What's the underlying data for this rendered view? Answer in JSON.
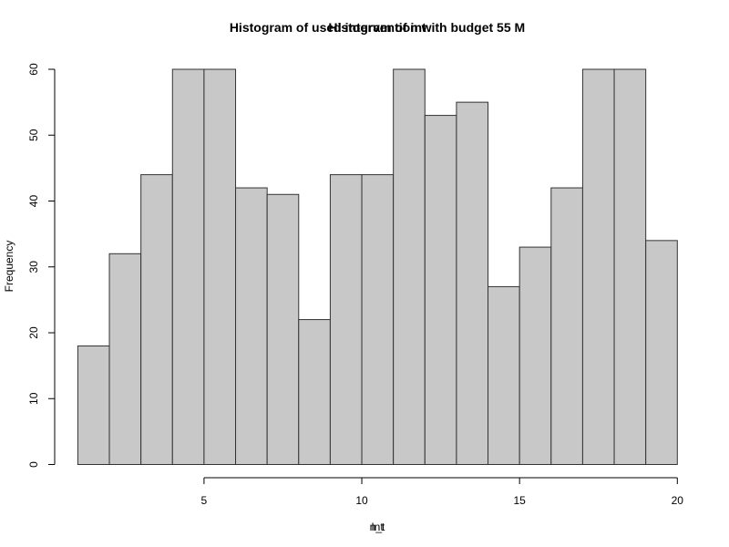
{
  "chart_data": {
    "type": "bar",
    "title_primary": "Histogram of used intervention with budget  55 M",
    "title_overlay": "Histogram of int",
    "xlabel_primary": "Int",
    "xlabel_overlay": "n_t",
    "ylabel": "Frequency",
    "bin_edges": [
      1,
      2,
      3,
      4,
      5,
      6,
      7,
      8,
      9,
      10,
      11,
      12,
      13,
      14,
      15,
      16,
      17,
      18,
      19,
      20
    ],
    "values": [
      18,
      32,
      44,
      60,
      60,
      42,
      41,
      22,
      44,
      44,
      60,
      53,
      55,
      27,
      33,
      42,
      60,
      60,
      34
    ],
    "xlim": [
      1,
      20
    ],
    "ylim": [
      0,
      60
    ],
    "x_ticks": [
      5,
      10,
      15,
      20
    ],
    "y_ticks": [
      0,
      10,
      20,
      30,
      40,
      50,
      60
    ],
    "bar_fill": "#c8c8c8",
    "bar_stroke": "#333333",
    "grid": false
  }
}
